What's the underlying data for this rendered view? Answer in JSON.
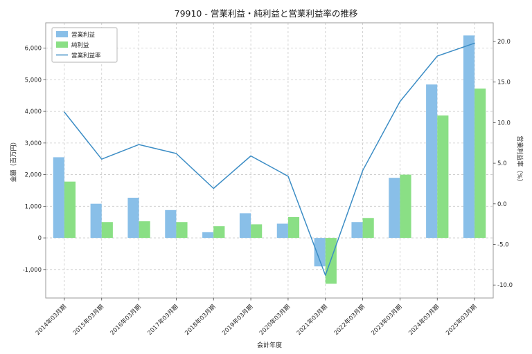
{
  "chart_data": {
    "type": "bar+line",
    "title": "79910 - 営業利益・純利益と営業利益率の推移",
    "xlabel": "会計年度",
    "ylabel_left": "金額（百万円）",
    "ylabel_right": "営業利益率（%）",
    "categories": [
      "2014年03月期",
      "2015年03月期",
      "2016年03月期",
      "2017年03月期",
      "2018年03月期",
      "2019年03月期",
      "2020年03月期",
      "2021年03月期",
      "2022年03月期",
      "2023年03月期",
      "2024年03月期",
      "2025年03月期"
    ],
    "series": [
      {
        "name": "営業利益",
        "type": "bar",
        "axis": "left",
        "color": "#89bfe8",
        "values": [
          2550,
          1080,
          1270,
          880,
          180,
          780,
          450,
          -900,
          500,
          1900,
          4850,
          6400
        ]
      },
      {
        "name": "純利益",
        "type": "bar",
        "axis": "left",
        "color": "#8adf85",
        "values": [
          1780,
          500,
          525,
          500,
          370,
          430,
          660,
          -1450,
          630,
          2000,
          3870,
          4720
        ]
      },
      {
        "name": "営業利益率",
        "type": "line",
        "axis": "right",
        "color": "#3c8dc5",
        "values": [
          11.3,
          5.5,
          7.3,
          6.2,
          1.9,
          5.9,
          3.4,
          -8.8,
          4.1,
          12.6,
          18.2,
          19.8
        ]
      }
    ],
    "left_axis": {
      "min": -1900,
      "max": 6800,
      "ticks": [
        -1000,
        0,
        1000,
        2000,
        3000,
        4000,
        5000,
        6000
      ]
    },
    "right_axis": {
      "min": -11.6,
      "max": 22.3,
      "ticks": [
        -10,
        -5,
        0,
        5,
        10,
        15,
        20
      ]
    },
    "grid": true,
    "grid_style": "dashed",
    "legend_position": "upper-left",
    "colors": {
      "grid": "#c9c9c9",
      "spine": "#9a9a9a",
      "tick_label": "#262626",
      "legend_border": "#b3b3b3"
    }
  }
}
